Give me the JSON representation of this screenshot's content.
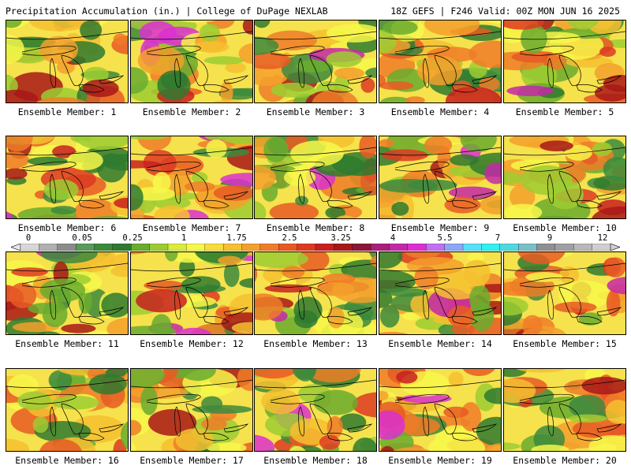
{
  "header": {
    "left": "Precipitation Accumulation (in.) | College of DuPage NEXLAB",
    "right": "18Z GEFS | F246 Valid: 00Z MON JUN 16 2025"
  },
  "panels": [
    {
      "label": "Ensemble Member: 1"
    },
    {
      "label": "Ensemble Member: 2"
    },
    {
      "label": "Ensemble Member: 3"
    },
    {
      "label": "Ensemble Member: 4"
    },
    {
      "label": "Ensemble Member: 5"
    },
    {
      "label": "Ensemble Member: 6"
    },
    {
      "label": "Ensemble Member: 7"
    },
    {
      "label": "Ensemble Member: 8"
    },
    {
      "label": "Ensemble Member: 9"
    },
    {
      "label": "Ensemble Member: 10"
    },
    {
      "label": "Ensemble Member: 11"
    },
    {
      "label": "Ensemble Member: 12"
    },
    {
      "label": "Ensemble Member: 13"
    },
    {
      "label": "Ensemble Member: 14"
    },
    {
      "label": "Ensemble Member: 15"
    },
    {
      "label": "Ensemble Member: 16"
    },
    {
      "label": "Ensemble Member: 17"
    },
    {
      "label": "Ensemble Member: 18"
    },
    {
      "label": "Ensemble Member: 19"
    },
    {
      "label": "Ensemble Member: 20"
    }
  ],
  "colorbar": {
    "tick_labels": [
      "0",
      "0.05",
      "0.25",
      "1",
      "1.75",
      "2.5",
      "3.25",
      "4",
      "5.5",
      "7",
      "9",
      "12"
    ],
    "colors": [
      "#d8d8d8",
      "#b0b0b0",
      "#8c8c8c",
      "#5a9a5a",
      "#3d8a3d",
      "#2f7a2f",
      "#6aac2f",
      "#9ccc33",
      "#d8ec3a",
      "#f7f74a",
      "#f8dc3a",
      "#f6c030",
      "#f3a02c",
      "#ef7d28",
      "#e85a24",
      "#dd3a22",
      "#c82020",
      "#a81818",
      "#8c1438",
      "#a8207a",
      "#c428a8",
      "#dc30d0",
      "#c070f0",
      "#8aa8f8",
      "#58e0f8",
      "#30f0f0",
      "#50d8e0",
      "#78c0c8",
      "#909090",
      "#a0a0a0",
      "#b8b8b8",
      "#cfcfcf"
    ]
  }
}
